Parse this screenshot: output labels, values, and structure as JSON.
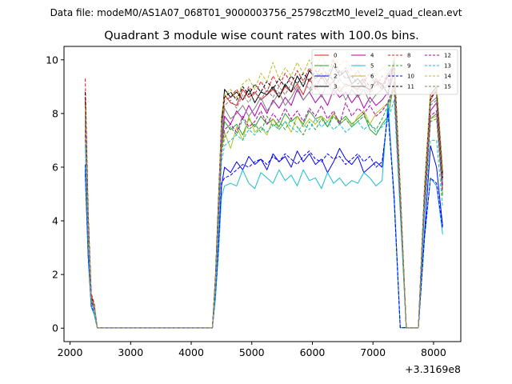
{
  "figure": {
    "suptitle": "Data file: modeM0/AS1A07_068T01_9000003756_25798cztM0_level2_quad_clean.evt"
  },
  "chart_data": {
    "type": "line",
    "title": "Quadrant 3 module wise count rates with 100.0s bins.",
    "xlabel": "",
    "ylabel": "",
    "x_offset_label": "+3.3169e8",
    "xlim": [
      1900,
      8450
    ],
    "ylim": [
      -0.5,
      10.5
    ],
    "xticks": [
      2000,
      3000,
      4000,
      5000,
      6000,
      7000,
      8000
    ],
    "xtick_labels": [
      "2000",
      "3000",
      "4000",
      "5000",
      "6000",
      "7000",
      "8000"
    ],
    "yticks": [
      0,
      2,
      4,
      6,
      8,
      10
    ],
    "ytick_labels": [
      "0",
      "2",
      "4",
      "6",
      "8",
      "10"
    ],
    "legend_position": "upper-right",
    "x": [
      2250,
      2300,
      2350,
      2400,
      2450,
      2550,
      2650,
      2750,
      2850,
      2950,
      3050,
      3150,
      3250,
      3350,
      3450,
      3550,
      3650,
      3750,
      3850,
      3950,
      4050,
      4150,
      4250,
      4350,
      4400,
      4450,
      4500,
      4550,
      4650,
      4750,
      4850,
      4950,
      5050,
      5150,
      5250,
      5350,
      5450,
      5550,
      5650,
      5750,
      5850,
      5950,
      6050,
      6150,
      6250,
      6350,
      6450,
      6550,
      6650,
      6750,
      6850,
      6950,
      7050,
      7150,
      7250,
      7350,
      7450,
      7550,
      7650,
      7750,
      7850,
      7950,
      8050,
      8150
    ],
    "series": [
      {
        "name": "0",
        "color": "#e41a1c",
        "dashed": false,
        "values": [
          8.5,
          4.0,
          1.2,
          0.8,
          0.02,
          0.02,
          0.02,
          0.02,
          0.02,
          0.02,
          0.02,
          0.02,
          0.02,
          0.02,
          0.02,
          0.02,
          0.02,
          0.02,
          0.02,
          0.02,
          0.02,
          0.02,
          0.02,
          0.02,
          1.8,
          4.5,
          7.5,
          8.7,
          8.4,
          8.3,
          8.9,
          8.6,
          8.8,
          8.5,
          8.7,
          8.9,
          8.6,
          9.0,
          8.8,
          9.1,
          8.7,
          9.3,
          8.9,
          9.4,
          9.0,
          9.2,
          8.8,
          9.1,
          9.0,
          8.9,
          9.2,
          8.8,
          9.3,
          9.0,
          9.5,
          9.8,
          5.0,
          0.02,
          0.02,
          0.02,
          5.0,
          8.5,
          8.9,
          5.6
        ]
      },
      {
        "name": "1",
        "color": "#2ca02c",
        "dashed": false,
        "values": [
          7.6,
          3.4,
          1.0,
          0.7,
          0.02,
          0.02,
          0.02,
          0.02,
          0.02,
          0.02,
          0.02,
          0.02,
          0.02,
          0.02,
          0.02,
          0.02,
          0.02,
          0.02,
          0.02,
          0.02,
          0.02,
          0.02,
          0.02,
          0.02,
          1.5,
          4.0,
          6.7,
          7.7,
          7.4,
          7.6,
          7.2,
          7.8,
          7.5,
          7.9,
          7.6,
          7.8,
          7.5,
          8.0,
          7.7,
          7.9,
          7.6,
          8.1,
          7.8,
          7.9,
          7.5,
          8.0,
          7.7,
          7.9,
          7.6,
          7.8,
          8.0,
          7.4,
          7.2,
          7.6,
          7.9,
          9.2,
          4.5,
          0.02,
          0.02,
          0.02,
          4.5,
          7.8,
          8.0,
          5.0
        ]
      },
      {
        "name": "2",
        "color": "#0000ff",
        "dashed": false,
        "values": [
          5.8,
          2.6,
          0.8,
          0.5,
          0.02,
          0.02,
          0.02,
          0.02,
          0.02,
          0.02,
          0.02,
          0.02,
          0.02,
          0.02,
          0.02,
          0.02,
          0.02,
          0.02,
          0.02,
          0.02,
          0.02,
          0.02,
          0.02,
          0.02,
          1.2,
          3.0,
          5.3,
          6.0,
          5.8,
          6.2,
          5.9,
          6.4,
          6.1,
          6.3,
          5.9,
          6.5,
          6.2,
          6.4,
          6.0,
          6.6,
          6.2,
          6.5,
          6.1,
          6.3,
          5.8,
          6.2,
          6.7,
          6.3,
          6.1,
          6.4,
          5.8,
          6.0,
          6.2,
          6.0,
          8.2,
          4.9,
          0.02,
          0.02,
          0.02,
          0.02,
          3.5,
          6.8,
          6.0,
          3.8
        ]
      },
      {
        "name": "3",
        "color": "#000000",
        "dashed": false,
        "values": [
          8.0,
          3.8,
          1.1,
          0.8,
          0.02,
          0.02,
          0.02,
          0.02,
          0.02,
          0.02,
          0.02,
          0.02,
          0.02,
          0.02,
          0.02,
          0.02,
          0.02,
          0.02,
          0.02,
          0.02,
          0.02,
          0.02,
          0.02,
          0.02,
          1.9,
          4.8,
          7.6,
          8.9,
          8.6,
          8.8,
          8.5,
          8.9,
          8.4,
          8.8,
          8.7,
          9.0,
          8.6,
          9.1,
          8.8,
          9.4,
          9.0,
          9.6,
          9.3,
          9.5,
          9.2,
          9.8,
          9.4,
          9.6,
          9.1,
          9.3,
          9.0,
          8.9,
          9.2,
          9.1,
          8.7,
          10.0,
          5.2,
          0.02,
          0.02,
          0.02,
          5.2,
          8.7,
          9.0,
          5.8
        ]
      },
      {
        "name": "4",
        "color": "#b000b0",
        "dashed": false,
        "values": [
          7.8,
          3.6,
          1.0,
          0.7,
          0.02,
          0.02,
          0.02,
          0.02,
          0.02,
          0.02,
          0.02,
          0.02,
          0.02,
          0.02,
          0.02,
          0.02,
          0.02,
          0.02,
          0.02,
          0.02,
          0.02,
          0.02,
          0.02,
          0.02,
          1.6,
          4.2,
          7.0,
          7.9,
          7.6,
          8.1,
          7.8,
          8.3,
          7.9,
          8.4,
          8.0,
          8.5,
          8.2,
          8.6,
          8.3,
          8.9,
          8.5,
          8.8,
          8.4,
          8.7,
          8.3,
          8.9,
          8.6,
          8.8,
          8.4,
          8.7,
          8.2,
          8.6,
          8.3,
          8.5,
          8.8,
          9.5,
          4.8,
          0.02,
          0.02,
          0.02,
          4.8,
          8.1,
          8.4,
          5.3
        ]
      },
      {
        "name": "5",
        "color": "#17becf",
        "dashed": false,
        "values": [
          6.0,
          2.8,
          0.8,
          0.5,
          0.02,
          0.02,
          0.02,
          0.02,
          0.02,
          0.02,
          0.02,
          0.02,
          0.02,
          0.02,
          0.02,
          0.02,
          0.02,
          0.02,
          0.02,
          0.02,
          0.02,
          0.02,
          0.02,
          0.02,
          1.1,
          2.8,
          4.9,
          5.3,
          5.4,
          5.3,
          5.9,
          5.4,
          5.2,
          5.8,
          5.6,
          5.4,
          5.9,
          5.5,
          5.7,
          5.3,
          5.9,
          5.5,
          5.6,
          5.2,
          5.8,
          5.4,
          5.6,
          5.3,
          5.5,
          5.4,
          5.8,
          5.6,
          5.3,
          5.5,
          8.5,
          4.7,
          0.02,
          0.02,
          0.02,
          0.02,
          3.3,
          5.6,
          5.3,
          3.5
        ]
      },
      {
        "name": "6",
        "color": "#bcbd22",
        "dashed": false,
        "values": [
          7.5,
          3.5,
          1.0,
          0.7,
          0.02,
          0.02,
          0.02,
          0.02,
          0.02,
          0.02,
          0.02,
          0.02,
          0.02,
          0.02,
          0.02,
          0.02,
          0.02,
          0.02,
          0.02,
          0.02,
          0.02,
          0.02,
          0.02,
          0.02,
          1.5,
          3.9,
          6.6,
          7.3,
          6.7,
          7.5,
          7.0,
          7.9,
          7.3,
          7.5,
          7.2,
          7.8,
          7.4,
          7.7,
          7.3,
          7.9,
          7.5,
          7.8,
          7.6,
          7.9,
          7.7,
          8.0,
          7.6,
          7.8,
          7.5,
          7.9,
          8.1,
          7.6,
          8.0,
          8.2,
          8.4,
          9.0,
          4.6,
          0.02,
          0.02,
          0.02,
          4.6,
          7.8,
          7.9,
          5.0
        ]
      },
      {
        "name": "7",
        "color": "#808080",
        "dashed": false,
        "values": [
          7.9,
          3.7,
          1.1,
          0.8,
          0.02,
          0.02,
          0.02,
          0.02,
          0.02,
          0.02,
          0.02,
          0.02,
          0.02,
          0.02,
          0.02,
          0.02,
          0.02,
          0.02,
          0.02,
          0.02,
          0.02,
          0.02,
          0.02,
          0.02,
          1.7,
          4.4,
          7.2,
          8.2,
          7.8,
          8.0,
          8.3,
          7.9,
          8.2,
          8.6,
          8.1,
          8.4,
          8.8,
          8.3,
          8.6,
          9.0,
          8.5,
          8.8,
          9.1,
          8.6,
          9.2,
          8.7,
          9.0,
          8.5,
          8.9,
          8.6,
          8.9,
          8.4,
          8.7,
          8.9,
          9.1,
          9.6,
          5.0,
          0.02,
          0.02,
          0.02,
          5.0,
          8.4,
          8.6,
          5.5
        ]
      },
      {
        "name": "8",
        "color": "#e41a1c",
        "dashed": true,
        "values": [
          9.3,
          4.3,
          1.3,
          0.9,
          0.02,
          0.02,
          0.02,
          0.02,
          0.02,
          0.02,
          0.02,
          0.02,
          0.02,
          0.02,
          0.02,
          0.02,
          0.02,
          0.02,
          0.02,
          0.02,
          0.02,
          0.02,
          0.02,
          0.02,
          1.9,
          4.6,
          7.7,
          8.5,
          8.6,
          8.9,
          8.5,
          9.0,
          8.7,
          9.2,
          8.8,
          9.4,
          9.0,
          9.5,
          9.1,
          9.6,
          9.2,
          9.7,
          9.3,
          9.8,
          9.4,
          10.0,
          9.5,
          9.7,
          9.3,
          9.6,
          9.2,
          9.5,
          9.0,
          9.4,
          9.2,
          9.9,
          5.1,
          0.02,
          0.02,
          0.02,
          5.1,
          8.7,
          8.8,
          5.7
        ]
      },
      {
        "name": "9",
        "color": "#2ca02c",
        "dashed": true,
        "values": [
          7.2,
          3.3,
          1.0,
          0.7,
          0.02,
          0.02,
          0.02,
          0.02,
          0.02,
          0.02,
          0.02,
          0.02,
          0.02,
          0.02,
          0.02,
          0.02,
          0.02,
          0.02,
          0.02,
          0.02,
          0.02,
          0.02,
          0.02,
          0.02,
          1.4,
          3.8,
          6.5,
          7.1,
          7.5,
          7.2,
          7.8,
          7.4,
          7.6,
          7.3,
          7.9,
          7.5,
          7.7,
          7.4,
          7.8,
          7.5,
          7.2,
          7.7,
          7.4,
          7.8,
          7.5,
          7.9,
          7.6,
          7.8,
          7.5,
          7.7,
          7.9,
          7.6,
          7.4,
          7.8,
          8.3,
          8.9,
          4.4,
          0.02,
          0.02,
          0.02,
          4.4,
          7.7,
          7.8,
          4.9
        ]
      },
      {
        "name": "10",
        "color": "#0000ff",
        "dashed": true,
        "values": [
          6.1,
          2.8,
          0.8,
          0.6,
          0.02,
          0.02,
          0.02,
          0.02,
          0.02,
          0.02,
          0.02,
          0.02,
          0.02,
          0.02,
          0.02,
          0.02,
          0.02,
          0.02,
          0.02,
          0.02,
          0.02,
          0.02,
          0.02,
          0.02,
          1.2,
          3.0,
          5.4,
          5.6,
          5.7,
          5.9,
          6.1,
          6.0,
          6.2,
          6.3,
          6.1,
          6.4,
          6.2,
          6.5,
          6.3,
          6.1,
          6.4,
          6.6,
          6.3,
          6.2,
          6.5,
          6.3,
          6.4,
          6.1,
          6.3,
          6.5,
          6.2,
          6.4,
          6.0,
          6.2,
          8.0,
          4.8,
          0.02,
          0.02,
          0.02,
          0.02,
          3.4,
          5.6,
          5.4,
          3.7
        ]
      },
      {
        "name": "11",
        "color": "#000000",
        "dashed": true,
        "values": [
          8.8,
          4.1,
          1.2,
          0.8,
          0.02,
          0.02,
          0.02,
          0.02,
          0.02,
          0.02,
          0.02,
          0.02,
          0.02,
          0.02,
          0.02,
          0.02,
          0.02,
          0.02,
          0.02,
          0.02,
          0.02,
          0.02,
          0.02,
          0.02,
          1.8,
          4.7,
          7.8,
          8.6,
          8.8,
          8.5,
          9.0,
          8.7,
          9.1,
          8.8,
          9.2,
          8.9,
          9.3,
          9.0,
          9.4,
          9.1,
          9.5,
          9.2,
          9.6,
          9.3,
          9.5,
          9.2,
          9.6,
          9.3,
          9.4,
          9.1,
          9.3,
          9.0,
          9.2,
          8.9,
          9.4,
          9.7,
          5.1,
          0.02,
          0.02,
          0.02,
          5.1,
          8.6,
          8.8,
          5.6
        ]
      },
      {
        "name": "12",
        "color": "#b000b0",
        "dashed": true,
        "values": [
          7.4,
          3.4,
          1.0,
          0.7,
          0.02,
          0.02,
          0.02,
          0.02,
          0.02,
          0.02,
          0.02,
          0.02,
          0.02,
          0.02,
          0.02,
          0.02,
          0.02,
          0.02,
          0.02,
          0.02,
          0.02,
          0.02,
          0.02,
          0.02,
          1.5,
          4.0,
          6.8,
          7.4,
          7.6,
          7.3,
          7.9,
          7.5,
          7.7,
          8.1,
          7.6,
          8.0,
          7.7,
          8.2,
          7.8,
          8.1,
          7.7,
          8.2,
          7.9,
          8.3,
          7.8,
          8.1,
          7.6,
          8.4,
          7.9,
          8.2,
          8.0,
          8.3,
          7.9,
          8.1,
          8.4,
          9.1,
          4.6,
          0.02,
          0.02,
          0.02,
          4.6,
          7.9,
          8.1,
          5.1
        ]
      },
      {
        "name": "13",
        "color": "#17becf",
        "dashed": true,
        "values": [
          6.8,
          3.1,
          0.9,
          0.6,
          0.02,
          0.02,
          0.02,
          0.02,
          0.02,
          0.02,
          0.02,
          0.02,
          0.02,
          0.02,
          0.02,
          0.02,
          0.02,
          0.02,
          0.02,
          0.02,
          0.02,
          0.02,
          0.02,
          0.02,
          1.3,
          3.6,
          6.2,
          6.8,
          7.0,
          7.2,
          7.0,
          7.4,
          7.2,
          7.5,
          7.3,
          7.6,
          7.4,
          7.7,
          7.5,
          7.3,
          7.6,
          7.4,
          7.8,
          7.5,
          7.7,
          7.4,
          7.6,
          7.3,
          7.5,
          7.7,
          7.4,
          7.6,
          7.3,
          7.5,
          7.8,
          8.5,
          4.3,
          0.02,
          0.02,
          0.02,
          4.3,
          7.0,
          7.0,
          4.5
        ]
      },
      {
        "name": "14",
        "color": "#bcbd22",
        "dashed": true,
        "values": [
          8.2,
          3.9,
          1.1,
          0.8,
          0.02,
          0.02,
          0.02,
          0.02,
          0.02,
          0.02,
          0.02,
          0.02,
          0.02,
          0.02,
          0.02,
          0.02,
          0.02,
          0.02,
          0.02,
          0.02,
          0.02,
          0.02,
          0.02,
          0.02,
          1.8,
          4.6,
          7.9,
          8.7,
          8.9,
          8.6,
          9.1,
          9.3,
          8.9,
          9.5,
          9.2,
          9.9,
          9.3,
          9.7,
          9.4,
          9.9,
          9.5,
          10.0,
          9.6,
          10.2,
          9.7,
          10.1,
          9.8,
          10.0,
          9.6,
          9.9,
          9.5,
          9.8,
          9.4,
          9.7,
          9.6,
          10.1,
          5.3,
          0.02,
          0.02,
          0.02,
          5.3,
          8.9,
          9.1,
          5.9
        ]
      },
      {
        "name": "15",
        "color": "#808080",
        "dashed": true,
        "values": [
          8.1,
          3.8,
          1.1,
          0.8,
          0.02,
          0.02,
          0.02,
          0.02,
          0.02,
          0.02,
          0.02,
          0.02,
          0.02,
          0.02,
          0.02,
          0.02,
          0.02,
          0.02,
          0.02,
          0.02,
          0.02,
          0.02,
          0.02,
          0.02,
          1.7,
          4.5,
          7.5,
          8.3,
          8.5,
          8.2,
          8.7,
          8.4,
          8.8,
          8.5,
          8.9,
          8.6,
          9.0,
          8.7,
          9.1,
          8.8,
          9.2,
          8.9,
          9.3,
          9.0,
          9.2,
          8.9,
          9.3,
          9.0,
          9.1,
          8.8,
          9.0,
          8.7,
          9.1,
          8.9,
          9.0,
          9.5,
          4.9,
          0.02,
          0.02,
          0.02,
          4.9,
          8.3,
          8.5,
          5.4
        ]
      }
    ]
  }
}
